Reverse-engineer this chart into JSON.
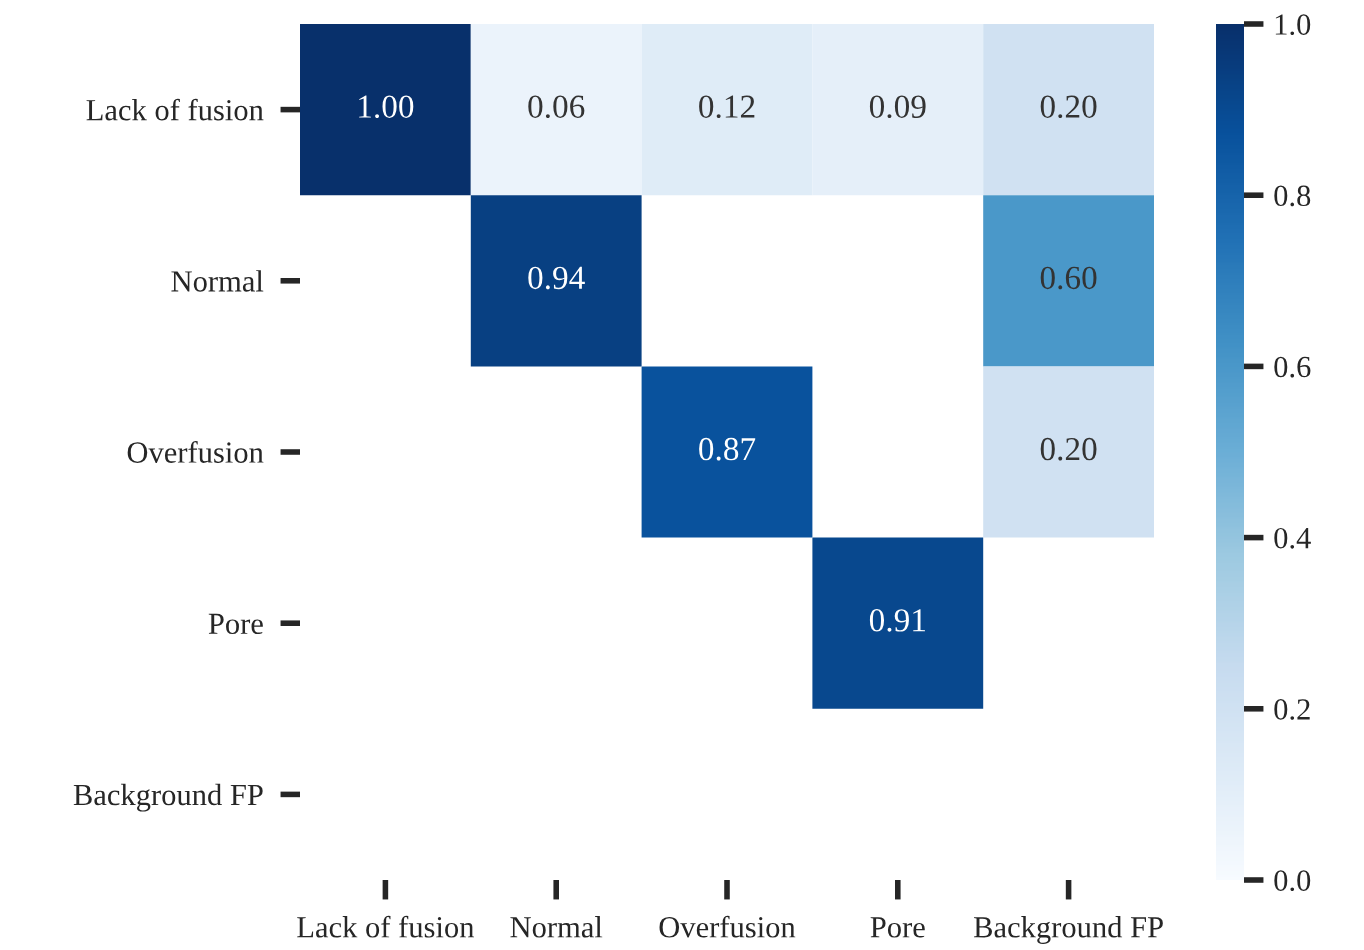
{
  "chart_data": {
    "type": "heatmap",
    "categories": [
      "Lack of fusion",
      "Normal",
      "Overfusion",
      "Pore",
      "Background FP"
    ],
    "y_categories": [
      "Lack of fusion",
      "Normal",
      "Overfusion",
      "Pore",
      "Background FP"
    ],
    "cells": [
      [
        1.0,
        0.06,
        0.12,
        0.09,
        0.2
      ],
      [
        null,
        0.94,
        null,
        null,
        0.6
      ],
      [
        null,
        null,
        0.87,
        null,
        0.2
      ],
      [
        null,
        null,
        null,
        0.91,
        null
      ],
      [
        null,
        null,
        null,
        null,
        null
      ]
    ],
    "cell_labels": [
      [
        "1.00",
        "0.06",
        "0.12",
        "0.09",
        "0.20"
      ],
      [
        null,
        "0.94",
        null,
        null,
        "0.60"
      ],
      [
        null,
        null,
        "0.87",
        null,
        "0.20"
      ],
      [
        null,
        null,
        null,
        "0.91",
        null
      ],
      [
        null,
        null,
        null,
        null,
        null
      ]
    ],
    "clim": [
      0,
      1
    ],
    "cticks": [
      {
        "value": 0,
        "label": "0.0"
      },
      {
        "value": 0.2,
        "label": "0.2"
      },
      {
        "value": 0.4,
        "label": "0.4"
      },
      {
        "value": 0.6,
        "label": "0.6"
      },
      {
        "value": 0.8,
        "label": "0.8"
      },
      {
        "value": 1,
        "label": "1.0"
      }
    ]
  }
}
